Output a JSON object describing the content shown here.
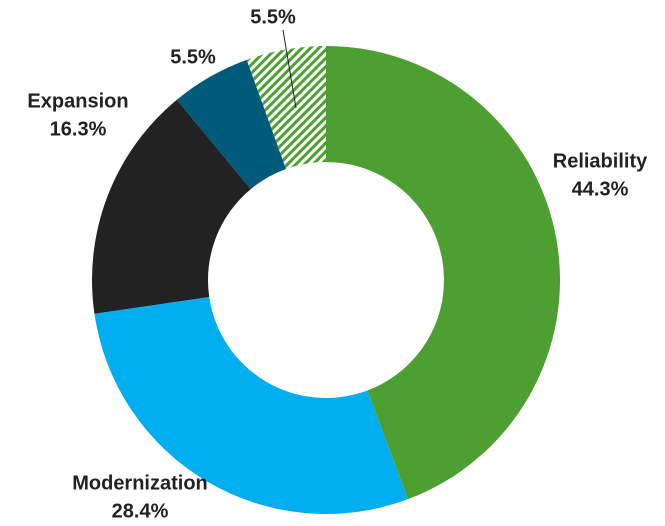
{
  "chart_data": {
    "type": "donut",
    "categories": [
      "Reliability",
      "Modernization",
      "Expansion",
      null,
      null
    ],
    "values": [
      44.3,
      28.4,
      16.3,
      5.5,
      5.5
    ],
    "value_labels": [
      "44.3%",
      "28.4%",
      "16.3%",
      "5.5%",
      "5.5%"
    ],
    "colors": [
      "#4e9f32",
      "#00aeef",
      "#222222",
      "#005a7a",
      "#4e9f32"
    ],
    "hatched": [
      false,
      false,
      false,
      false,
      true
    ]
  }
}
